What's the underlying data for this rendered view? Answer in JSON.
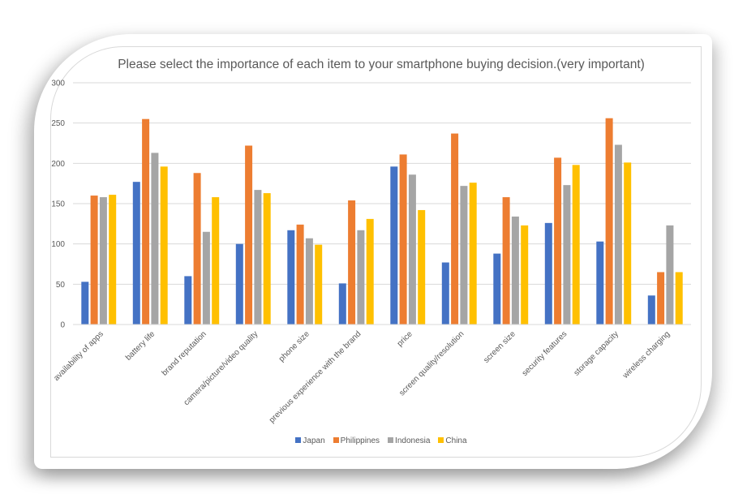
{
  "chart_data": {
    "type": "bar",
    "title": "Please select the importance of each item to your smartphone buying decision.(very important)",
    "xlabel": "",
    "ylabel": "",
    "ylim": [
      0,
      300
    ],
    "yticks": [
      0,
      50,
      100,
      150,
      200,
      250,
      300
    ],
    "grid": true,
    "legend_position": "bottom",
    "categories": [
      "availability of apps",
      "battery life",
      "brand reputation",
      "camera/picture/video quality",
      "phone size",
      "previous experience with the brand",
      "price",
      "screen quality/resolution",
      "screen size",
      "security features",
      "storage capacity",
      "wireless charging"
    ],
    "series": [
      {
        "name": "Japan",
        "color": "#4472C4",
        "values": [
          53,
          177,
          60,
          100,
          117,
          51,
          196,
          77,
          88,
          126,
          103,
          36
        ]
      },
      {
        "name": "Philippines",
        "color": "#ED7D31",
        "values": [
          160,
          255,
          188,
          222,
          124,
          154,
          211,
          237,
          158,
          207,
          256,
          65
        ]
      },
      {
        "name": "Indonesia",
        "color": "#A5A5A5",
        "values": [
          158,
          213,
          115,
          167,
          107,
          117,
          186,
          172,
          134,
          173,
          223,
          123
        ]
      },
      {
        "name": "China",
        "color": "#FFC000",
        "values": [
          161,
          196,
          158,
          163,
          99,
          131,
          142,
          176,
          123,
          198,
          201,
          65
        ]
      }
    ]
  }
}
